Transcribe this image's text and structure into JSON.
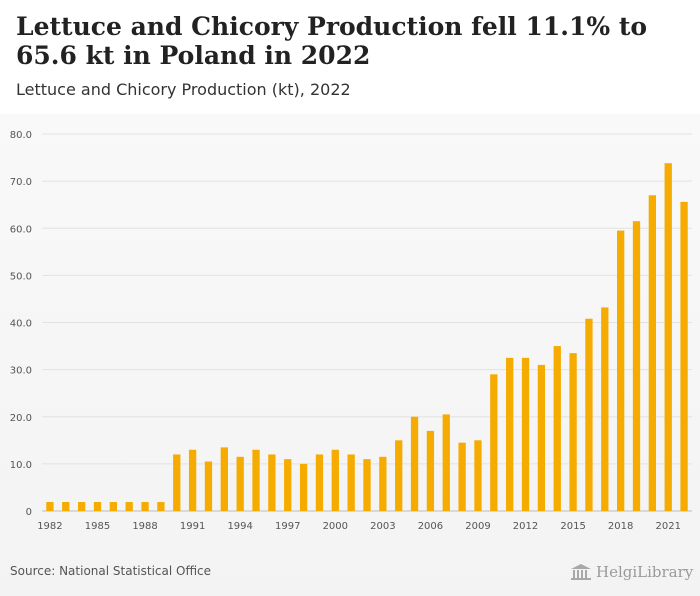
{
  "header": {
    "title": "Lettuce and Chicory Production fell 11.1% to 65.6 kt in Poland in 2022",
    "subtitle": "Lettuce and Chicory Production (kt), 2022"
  },
  "footer": {
    "source": "Source: National Statistical Office",
    "logo_text": "HelgiLibrary"
  },
  "colors": {
    "bar": "#f5ab00",
    "grid": "#e2e2e2",
    "tick_text": "#555555"
  },
  "chart_data": {
    "type": "bar",
    "x": [
      1982,
      1983,
      1984,
      1985,
      1986,
      1987,
      1988,
      1989,
      1990,
      1991,
      1992,
      1993,
      1994,
      1995,
      1996,
      1997,
      1998,
      1999,
      2000,
      2001,
      2002,
      2003,
      2004,
      2005,
      2006,
      2007,
      2008,
      2009,
      2010,
      2011,
      2012,
      2013,
      2014,
      2015,
      2016,
      2017,
      2018,
      2019,
      2020,
      2021,
      2022
    ],
    "values": [
      1.9,
      1.9,
      1.9,
      1.9,
      1.9,
      1.9,
      1.9,
      1.9,
      12.0,
      13.0,
      10.5,
      13.5,
      11.5,
      13.0,
      12.0,
      11.0,
      10.0,
      12.0,
      13.0,
      12.0,
      11.0,
      11.5,
      15.0,
      20.0,
      17.0,
      20.5,
      14.5,
      15.0,
      29.0,
      32.5,
      32.5,
      31.0,
      35.0,
      33.5,
      40.8,
      43.2,
      59.5,
      61.5,
      67.0,
      73.8,
      65.6
    ],
    "x_tick_labels": [
      "1982",
      "1985",
      "1988",
      "1991",
      "1994",
      "1997",
      "2000",
      "2003",
      "2006",
      "2009",
      "2012",
      "2015",
      "2018",
      "2021"
    ],
    "y_tick_labels": [
      "0",
      "10.0",
      "20.0",
      "30.0",
      "40.0",
      "50.0",
      "60.0",
      "70.0",
      "80.0"
    ],
    "ylim": [
      0,
      80
    ],
    "grid": true
  }
}
